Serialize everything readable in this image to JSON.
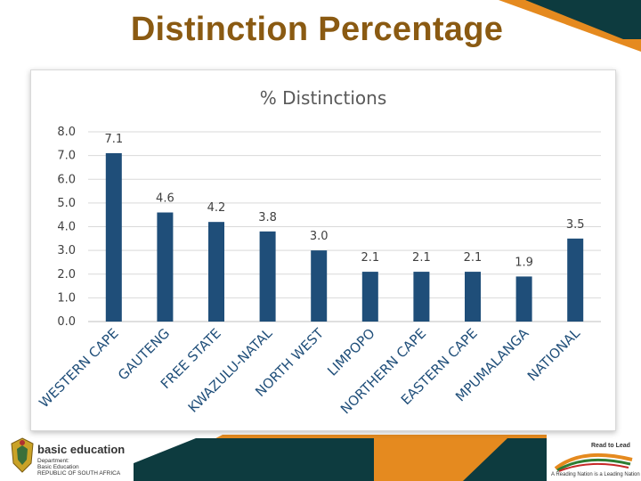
{
  "slide": {
    "title": "Distinction Percentage"
  },
  "colors": {
    "bar": "#1f4e79",
    "accent_orange": "#e58a1f",
    "accent_teal": "#0d3b3f",
    "title_brown": "#8a5a12"
  },
  "chart_data": {
    "type": "bar",
    "title": "% Distinctions",
    "categories": [
      "WESTERN CAPE",
      "GAUTENG",
      "FREE STATE",
      "KWAZULU-NATAL",
      "NORTH WEST",
      "LIMPOPO",
      "NORTHERN CAPE",
      "EASTERN CAPE",
      "MPUMALANGA",
      "NATIONAL"
    ],
    "values": [
      7.1,
      4.6,
      4.2,
      3.8,
      3.0,
      2.1,
      2.1,
      2.1,
      1.9,
      3.5
    ],
    "value_labels": [
      "7.1",
      "4.6",
      "4.2",
      "3.8",
      "3.0",
      "2.1",
      "2.1",
      "2.1",
      "1.9",
      "3.5"
    ],
    "y_ticks": [
      "0.0",
      "1.0",
      "2.0",
      "3.0",
      "4.0",
      "5.0",
      "6.0",
      "7.0",
      "8.0"
    ],
    "ylim": [
      0,
      8
    ],
    "xlabel": "",
    "ylabel": "",
    "grid": true,
    "legend": "none"
  },
  "footer": {
    "left_logo": {
      "name": "basic education",
      "line1": "Department:",
      "line2": "Basic Education",
      "line3": "REPUBLIC OF SOUTH AFRICA"
    },
    "right_logo": {
      "name": "Read to Lead",
      "tagline": "A Reading Nation is a Leading Nation"
    }
  }
}
